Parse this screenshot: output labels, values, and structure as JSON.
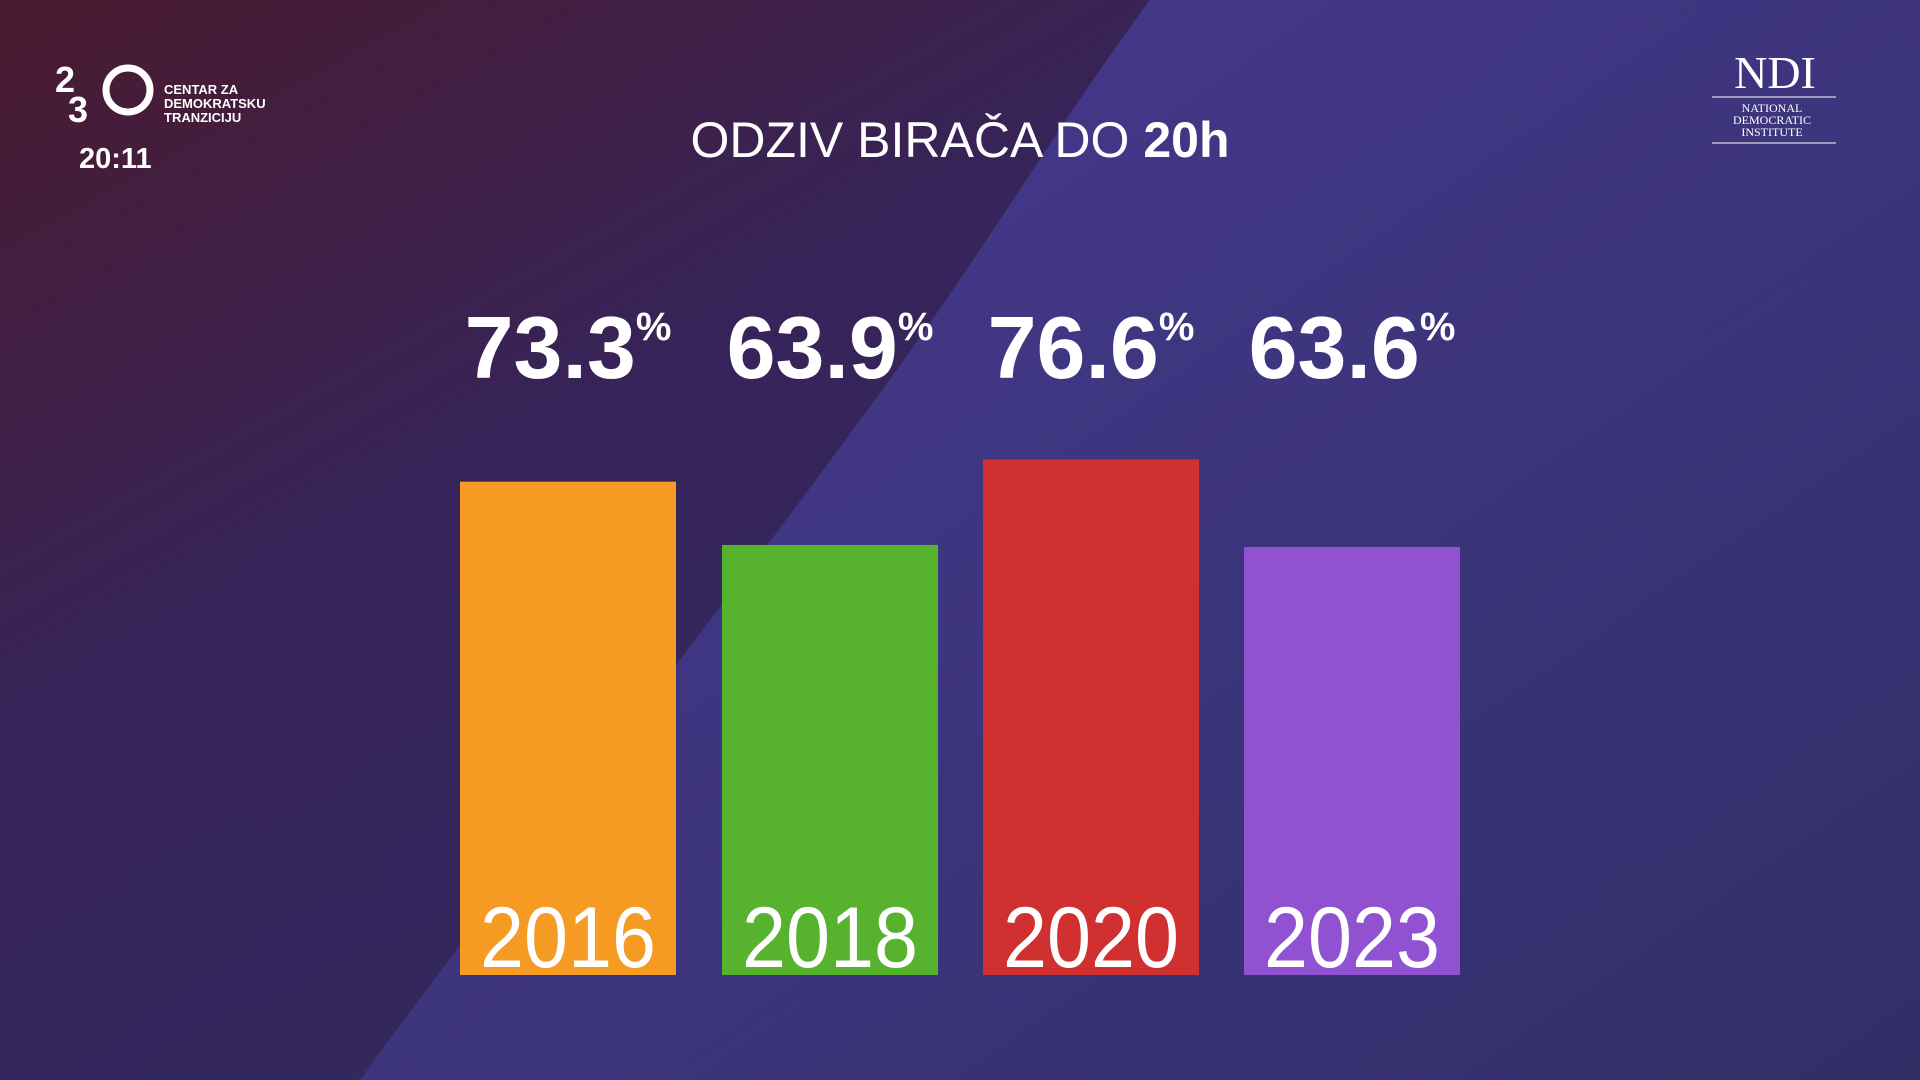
{
  "chart_data": {
    "type": "bar",
    "title": "ODZIV BIRAČA DO",
    "title_bold": "20h",
    "categories": [
      "2016",
      "2018",
      "2020",
      "2023"
    ],
    "values": [
      73.3,
      63.9,
      76.6,
      63.6
    ],
    "value_labels": [
      "73.3%",
      "63.9%",
      "76.6%",
      "63.6%"
    ],
    "colors": [
      "#f59a23",
      "#57b22e",
      "#d03030",
      "#9052d0"
    ]
  },
  "branding": {
    "logo_digits": [
      "2",
      "3"
    ],
    "org_lines": [
      "CENTAR ZA",
      "DEMOKRATSKU",
      "TRANZICIJU"
    ],
    "time": "20:11",
    "partner": "NDI",
    "partner_lines": [
      "NATIONAL",
      "DEMOCRATIC",
      "INSTITUTE"
    ]
  }
}
